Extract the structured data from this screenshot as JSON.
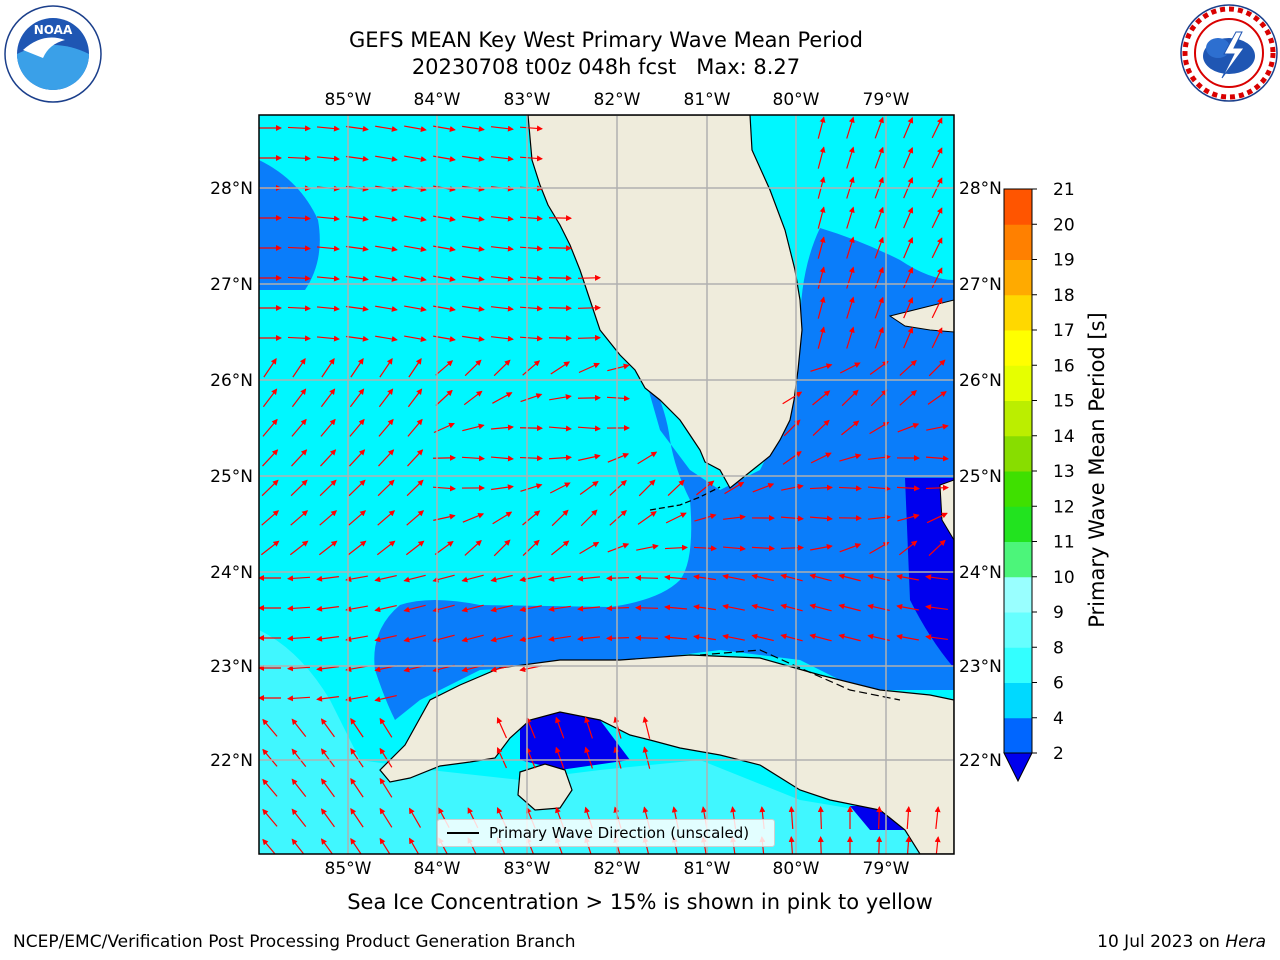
{
  "title": {
    "line1": "GEFS MEAN Key West Primary Wave Mean Period",
    "line2": "20230708 t00z 048h fcst   Max: 8.27"
  },
  "map": {
    "lon_labels": [
      "85°W",
      "84°W",
      "83°W",
      "82°W",
      "81°W",
      "80°W",
      "79°W"
    ],
    "lat_labels": [
      "28°N",
      "27°N",
      "26°N",
      "25°N",
      "24°N",
      "23°N",
      "22°N"
    ],
    "colors": {
      "land": "#efecdc",
      "coastline": "#000000",
      "grid": "#b0b0b0",
      "arrow": "#ff0000"
    },
    "legend_label": "Primary Wave Direction (unscaled)"
  },
  "colorbar": {
    "label": "Primary Wave Mean Period [s]",
    "ticks": [
      "2",
      "4",
      "6",
      "8",
      "9",
      "10",
      "11",
      "12",
      "13",
      "14",
      "15",
      "16",
      "17",
      "18",
      "19",
      "20",
      "21"
    ],
    "colors": [
      "#0066ff",
      "#00d9ff",
      "#33ffff",
      "#66ffff",
      "#99ffff",
      "#4cf57a",
      "#22e31f",
      "#3fe000",
      "#88dd00",
      "#bbee00",
      "#e6ff00",
      "#ffff00",
      "#ffd800",
      "#ffaa00",
      "#ff8000",
      "#ff5500",
      "#ff2500",
      "#ff0000"
    ],
    "extend_color": "#0000ee"
  },
  "footer": {
    "note": "Sea Ice Concentration > 15% is shown in pink to yellow",
    "left": "NCEP/EMC/Verification Post Processing Product Generation Branch",
    "right_date": "10 Jul 2023 on",
    "right_host": "Hera"
  },
  "logos": {
    "left": "noaa-logo",
    "right": "nws-logo"
  }
}
